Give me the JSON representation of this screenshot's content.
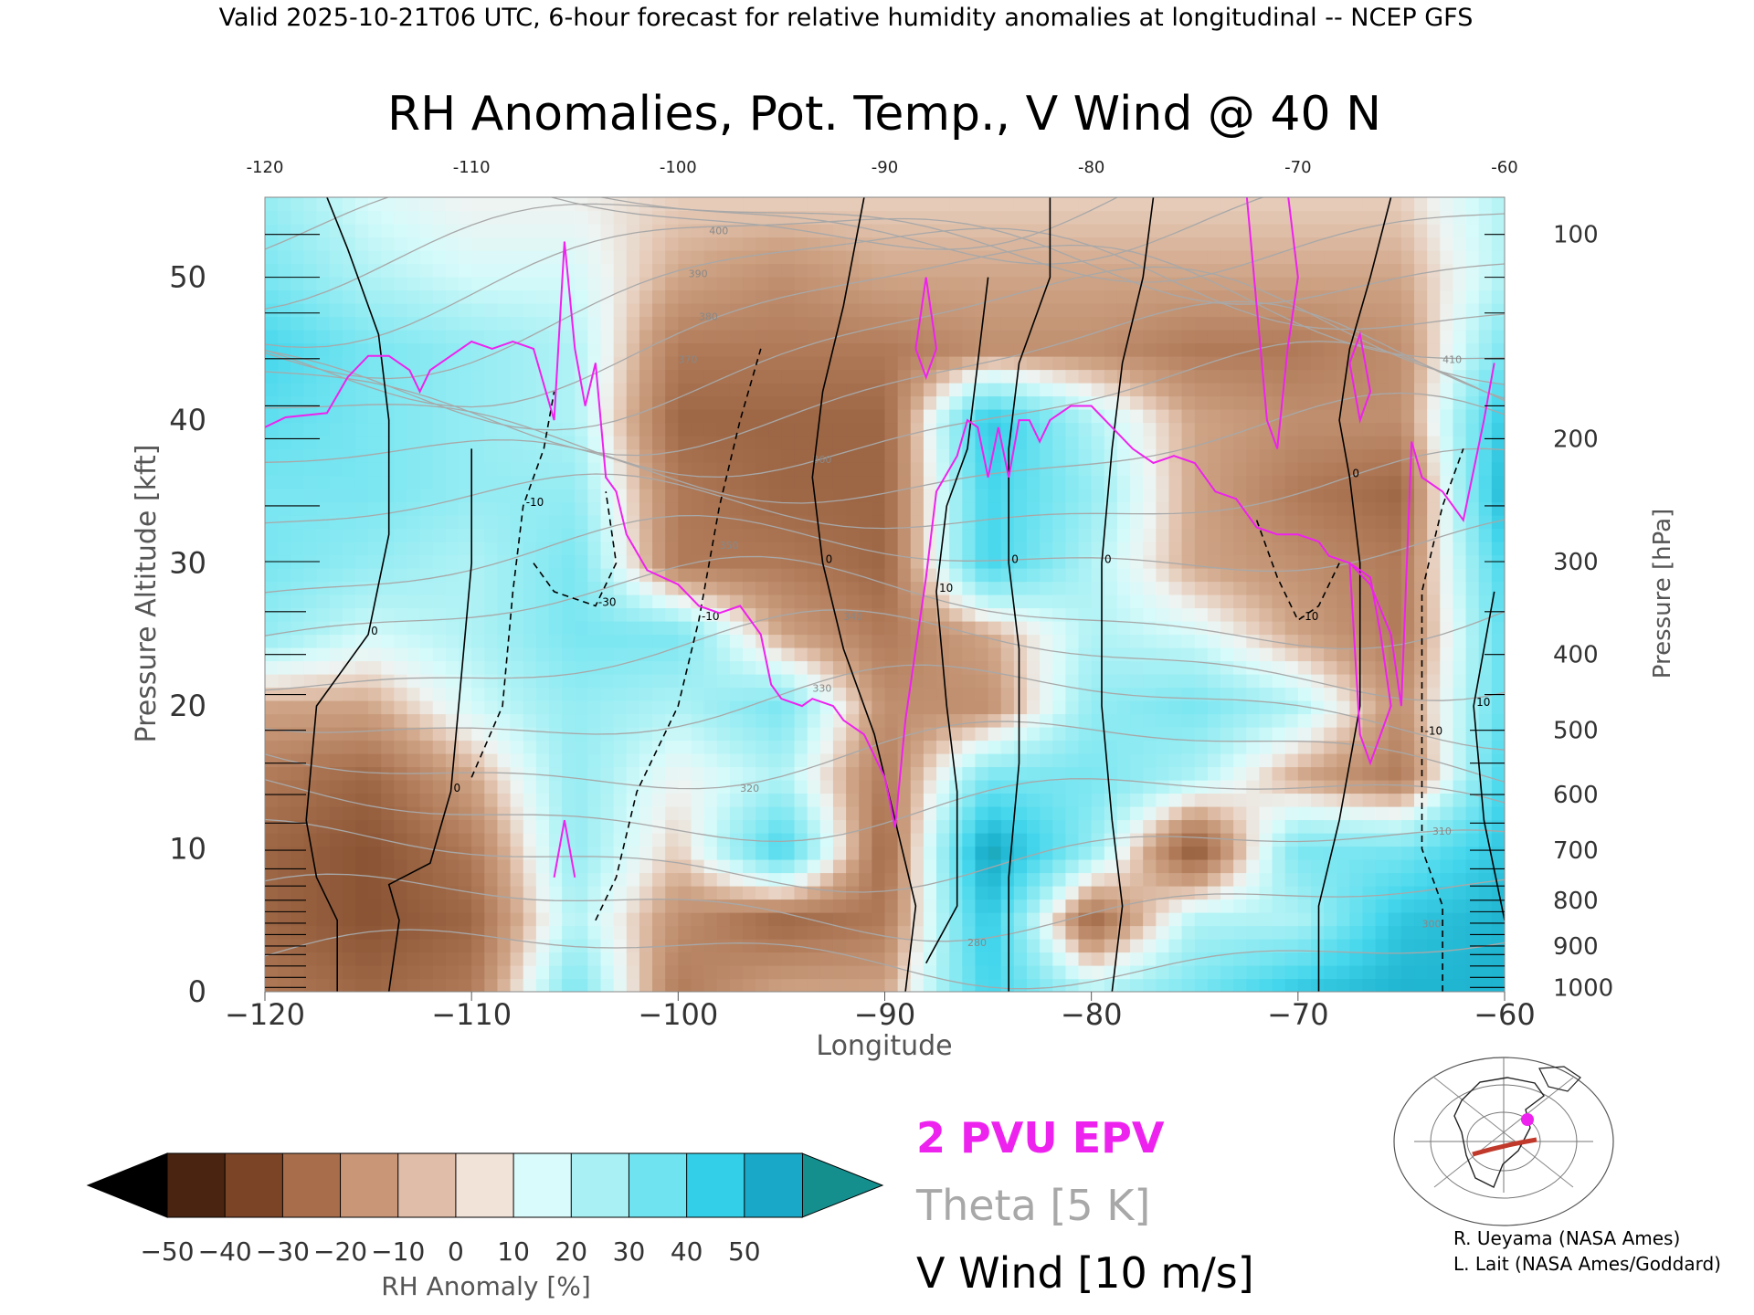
{
  "header": {
    "text": "Valid 2025-10-21T06 UTC, 6-hour forecast for relative humidity anomalies at longitudinal -- NCEP GFS"
  },
  "credits": {
    "line1": "R. Ueyama (NASA Ames)",
    "line2": "L. Lait (NASA Ames/Goddard)"
  },
  "legend": {
    "epv": "2 PVU EPV",
    "theta": "Theta [5 K]",
    "vwind": "V Wind [10 m/s]"
  },
  "colors": {
    "epv": "#ee22ee",
    "theta": "#a8a8a8",
    "vwind": "#000000",
    "dry_max": "#3a1a08",
    "wet_max": "#1a9c9c"
  },
  "chart_data": {
    "type": "heatmap",
    "title": "RH Anomalies, Pot. Temp., V Wind @ 40 N",
    "xlabel": "Longitude",
    "ylabel_left": "Pressure Altitude [kft]",
    "ylabel_right": "Pressure [hPa]",
    "xlim": [
      -120,
      -60
    ],
    "ylim": [
      0,
      55.6
    ],
    "x_ticks": [
      -120,
      -110,
      -100,
      -90,
      -80,
      -70,
      -60
    ],
    "x_tick_labels": [
      "−120",
      "−110",
      "−100",
      "−90",
      "−80",
      "−70",
      "−60"
    ],
    "x_top_tick_labels": [
      "-120",
      "-110",
      "-100",
      "-90",
      "-80",
      "-70",
      "-60"
    ],
    "y_left_ticks": [
      0,
      10,
      20,
      30,
      40,
      50
    ],
    "y_right_ticks": [
      {
        "label": "100",
        "kft": 53.0
      },
      {
        "label": "200",
        "kft": 38.7
      },
      {
        "label": "300",
        "kft": 30.1
      },
      {
        "label": "400",
        "kft": 23.6
      },
      {
        "label": "500",
        "kft": 18.3
      },
      {
        "label": "600",
        "kft": 13.8
      },
      {
        "label": "700",
        "kft": 9.9
      },
      {
        "label": "800",
        "kft": 6.4
      },
      {
        "label": "900",
        "kft": 3.2
      },
      {
        "label": "1000",
        "kft": 0.3
      }
    ],
    "colorbar": {
      "label": "RH Anomaly [%]",
      "ticks": [
        "−50",
        "−40",
        "−30",
        "−20",
        "−10",
        "0",
        "10",
        "20",
        "30",
        "40",
        "50"
      ],
      "colors": [
        "#000000",
        "#4a2410",
        "#7b4426",
        "#a86e4c",
        "#c99678",
        "#dfbda8",
        "#f2e3d9",
        "#dafbfb",
        "#a8f0f4",
        "#6fe3f0",
        "#33cfe8",
        "#1aa8c8",
        "#158e8e"
      ]
    },
    "rh_anomaly_grid": {
      "x": [
        -120,
        -115,
        -110,
        -105,
        -100,
        -95,
        -90,
        -85,
        -80,
        -75,
        -70,
        -65,
        -60
      ],
      "y": [
        0,
        5,
        10,
        15,
        20,
        25,
        30,
        35,
        40,
        45,
        50,
        55
      ],
      "values": [
        [
          -20,
          -25,
          -20,
          20,
          -20,
          -10,
          -10,
          30,
          10,
          20,
          35,
          40,
          40
        ],
        [
          -25,
          -30,
          -25,
          10,
          -15,
          -25,
          -20,
          35,
          -25,
          10,
          10,
          35,
          40
        ],
        [
          -25,
          -30,
          -20,
          15,
          -5,
          30,
          -25,
          45,
          15,
          -30,
          20,
          20,
          35
        ],
        [
          -20,
          -25,
          -10,
          15,
          0,
          10,
          -20,
          20,
          20,
          10,
          -10,
          -20,
          30
        ],
        [
          -10,
          -10,
          5,
          15,
          10,
          20,
          -15,
          -15,
          15,
          20,
          10,
          -15,
          25
        ],
        [
          15,
          5,
          10,
          20,
          20,
          -10,
          -20,
          -10,
          10,
          5,
          -10,
          -20,
          25
        ],
        [
          20,
          15,
          10,
          20,
          -20,
          -20,
          -25,
          30,
          10,
          -10,
          -15,
          -20,
          30
        ],
        [
          20,
          20,
          15,
          15,
          -20,
          -25,
          -25,
          30,
          15,
          -10,
          -20,
          -25,
          40
        ],
        [
          25,
          20,
          15,
          10,
          -25,
          -25,
          -25,
          35,
          10,
          -10,
          -15,
          -15,
          35
        ],
        [
          30,
          20,
          15,
          10,
          -20,
          -20,
          -20,
          -15,
          -15,
          -20,
          -20,
          -15,
          20
        ],
        [
          20,
          10,
          5,
          5,
          -10,
          -15,
          -10,
          -10,
          -10,
          -10,
          -10,
          -10,
          10
        ],
        [
          15,
          5,
          0,
          0,
          -5,
          -5,
          -5,
          -5,
          -5,
          -5,
          -5,
          -5,
          10
        ]
      ]
    },
    "epv_2pvu_line": [
      [
        -120,
        39.5
      ],
      [
        -119,
        40.2
      ],
      [
        -117,
        40.5
      ],
      [
        -116,
        43
      ],
      [
        -115,
        44.5
      ],
      [
        -114,
        44.5
      ],
      [
        -113,
        43.5
      ],
      [
        -112.5,
        42
      ],
      [
        -112,
        43.5
      ],
      [
        -111,
        44.5
      ],
      [
        -110,
        45.5
      ],
      [
        -109,
        45
      ],
      [
        -108,
        45.5
      ],
      [
        -107,
        45
      ],
      [
        -106,
        40
      ],
      [
        -105.5,
        52.5
      ],
      [
        -105,
        45
      ],
      [
        -104.5,
        41
      ],
      [
        -104,
        44
      ],
      [
        -103.5,
        36
      ],
      [
        -103,
        35
      ],
      [
        -102.5,
        32
      ],
      [
        -101.5,
        29.5
      ],
      [
        -100,
        28.5
      ],
      [
        -99,
        27
      ],
      [
        -98,
        26.5
      ],
      [
        -97,
        27
      ],
      [
        -96,
        25
      ],
      [
        -95.5,
        21.5
      ],
      [
        -95,
        20.5
      ],
      [
        -94,
        20
      ],
      [
        -93.5,
        20.5
      ],
      [
        -92.5,
        20
      ],
      [
        -92,
        19
      ],
      [
        -91,
        18
      ],
      [
        -90,
        15
      ],
      [
        -89.5,
        11.5
      ],
      [
        -89,
        19
      ],
      [
        -88.5,
        24
      ],
      [
        -88,
        29
      ],
      [
        -87.5,
        35
      ],
      [
        -86.5,
        37.5
      ],
      [
        -86,
        40
      ],
      [
        -85.5,
        39.5
      ],
      [
        -85,
        36
      ],
      [
        -84.5,
        39.5
      ],
      [
        -84,
        36
      ],
      [
        -83.5,
        40
      ],
      [
        -83,
        40
      ],
      [
        -82.5,
        38.5
      ],
      [
        -82,
        40
      ],
      [
        -81,
        41
      ],
      [
        -80,
        41
      ],
      [
        -79,
        39.5
      ],
      [
        -78,
        38
      ],
      [
        -77,
        37
      ],
      [
        -76,
        37.5
      ],
      [
        -75,
        37
      ],
      [
        -74,
        35
      ],
      [
        -73,
        34.5
      ],
      [
        -72,
        32.5
      ],
      [
        -71,
        32
      ],
      [
        -70,
        32
      ],
      [
        -69,
        31.5
      ],
      [
        -68.5,
        30.5
      ],
      [
        -67.5,
        30
      ],
      [
        -66.5,
        28.5
      ],
      [
        -65.5,
        25
      ],
      [
        -65,
        20
      ],
      [
        -64.5,
        38.5
      ],
      [
        -64,
        36
      ],
      [
        -63,
        35
      ],
      [
        -62,
        33
      ],
      [
        -61,
        40
      ],
      [
        -60.5,
        44
      ]
    ],
    "epv_islands": [
      [
        [
          -106,
          8
        ],
        [
          -105.5,
          12
        ],
        [
          -105,
          8
        ]
      ],
      [
        [
          -88.5,
          45
        ],
        [
          -88,
          50
        ],
        [
          -87.5,
          45
        ],
        [
          -88,
          43
        ],
        [
          -88.5,
          45
        ]
      ],
      [
        [
          -72.5,
          56
        ],
        [
          -72,
          48
        ],
        [
          -71.5,
          40
        ],
        [
          -71,
          38
        ],
        [
          -70.5,
          45
        ],
        [
          -70,
          50
        ],
        [
          -70.5,
          56
        ]
      ],
      [
        [
          -67.5,
          44
        ],
        [
          -67,
          46
        ],
        [
          -66.5,
          42
        ],
        [
          -67,
          40
        ],
        [
          -67.5,
          44
        ]
      ],
      [
        [
          -67.5,
          30
        ],
        [
          -66.5,
          29
        ],
        [
          -66,
          25
        ],
        [
          -65.5,
          20
        ],
        [
          -66.5,
          16
        ],
        [
          -67,
          18
        ],
        [
          -67.5,
          30
        ]
      ]
    ],
    "vwind_contours": [
      {
        "label": "0",
        "points": [
          [
            -116.5,
            0
          ],
          [
            -116.5,
            5
          ],
          [
            -117.5,
            8
          ],
          [
            -118,
            12
          ],
          [
            -117.5,
            20
          ],
          [
            -115,
            25
          ],
          [
            -114,
            32
          ],
          [
            -114,
            40
          ],
          [
            -114.5,
            46
          ],
          [
            -116,
            52
          ],
          [
            -117,
            55.6
          ]
        ]
      },
      {
        "label": "0",
        "points": [
          [
            -114,
            0
          ],
          [
            -113.5,
            5
          ],
          [
            -114,
            7.5
          ],
          [
            -112,
            9
          ],
          [
            -111,
            14
          ],
          [
            -110.5,
            22
          ],
          [
            -110,
            30
          ],
          [
            -110,
            38
          ]
        ]
      },
      {
        "label": "-10",
        "points": [
          [
            -110,
            15
          ],
          [
            -108.5,
            20
          ],
          [
            -108,
            28
          ],
          [
            -107.5,
            34
          ],
          [
            -106.5,
            38
          ],
          [
            -106,
            42
          ]
        ]
      },
      {
        "label": "-30",
        "points": [
          [
            -107,
            30
          ],
          [
            -106,
            28
          ],
          [
            -104,
            27
          ],
          [
            -103,
            30
          ],
          [
            -103.5,
            35
          ]
        ]
      },
      {
        "label": "-10",
        "points": [
          [
            -104,
            5
          ],
          [
            -103,
            8
          ],
          [
            -102,
            14
          ],
          [
            -100,
            20
          ],
          [
            -99,
            26
          ],
          [
            -98,
            34
          ],
          [
            -97,
            40
          ],
          [
            -96,
            45
          ]
        ]
      },
      {
        "label": "0",
        "points": [
          [
            -89,
            0
          ],
          [
            -88.5,
            6
          ],
          [
            -89.5,
            12
          ],
          [
            -90.5,
            18
          ],
          [
            -92,
            24
          ],
          [
            -93,
            30
          ],
          [
            -93.5,
            36
          ],
          [
            -93,
            42
          ],
          [
            -92,
            48
          ],
          [
            -91,
            55.6
          ]
        ]
      },
      {
        "label": "10",
        "points": [
          [
            -88,
            2
          ],
          [
            -86.5,
            6
          ],
          [
            -86.5,
            14
          ],
          [
            -87,
            20
          ],
          [
            -87.5,
            28
          ],
          [
            -87,
            34
          ],
          [
            -86,
            38
          ],
          [
            -85.5,
            44
          ],
          [
            -85,
            50
          ]
        ]
      },
      {
        "label": "0",
        "points": [
          [
            -84,
            0
          ],
          [
            -84,
            8
          ],
          [
            -83.5,
            16
          ],
          [
            -83.5,
            24
          ],
          [
            -84,
            30
          ],
          [
            -84,
            38
          ],
          [
            -83.5,
            44
          ],
          [
            -82,
            50
          ],
          [
            -82,
            55.6
          ]
        ]
      },
      {
        "label": "0",
        "points": [
          [
            -79,
            0
          ],
          [
            -78.5,
            6
          ],
          [
            -79,
            12
          ],
          [
            -79.5,
            20
          ],
          [
            -79.5,
            30
          ],
          [
            -79,
            38
          ],
          [
            -78.5,
            44
          ],
          [
            -77.5,
            50
          ],
          [
            -77,
            55.6
          ]
        ]
      },
      {
        "label": "0",
        "points": [
          [
            -69,
            0
          ],
          [
            -69,
            6
          ],
          [
            -68,
            12
          ],
          [
            -67,
            20
          ],
          [
            -67,
            30
          ],
          [
            -67.5,
            36
          ],
          [
            -68,
            40
          ],
          [
            -67.5,
            45
          ],
          [
            -66.5,
            50
          ],
          [
            -65.5,
            55.6
          ]
        ]
      },
      {
        "label": "-10",
        "points": [
          [
            -63,
            0
          ],
          [
            -63,
            6
          ],
          [
            -64,
            10
          ],
          [
            -64,
            18
          ],
          [
            -64,
            28
          ],
          [
            -63,
            34
          ],
          [
            -62,
            38
          ]
        ]
      },
      {
        "label": "10",
        "points": [
          [
            -60,
            5
          ],
          [
            -61,
            12
          ],
          [
            -61.5,
            20
          ],
          [
            -60.5,
            28
          ]
        ]
      },
      {
        "label": "-10",
        "points": [
          [
            -72,
            33
          ],
          [
            -71,
            29
          ],
          [
            -70,
            26
          ],
          [
            -69,
            27
          ],
          [
            -68,
            30
          ]
        ]
      }
    ],
    "theta_levels": [
      "280",
      "300",
      "310",
      "320",
      "330",
      "340",
      "350",
      "360",
      "370",
      "380",
      "390",
      "400",
      "410"
    ],
    "theta_start_y": [
      2.5,
      6.0,
      9.5,
      13.0,
      16.5,
      20.0,
      23.5,
      27.0,
      30.5,
      34.0,
      37.0,
      40.0,
      42.5,
      45.0,
      47.0,
      49.0,
      50.8,
      52.5,
      54.0,
      55.3
    ],
    "grid": false
  }
}
